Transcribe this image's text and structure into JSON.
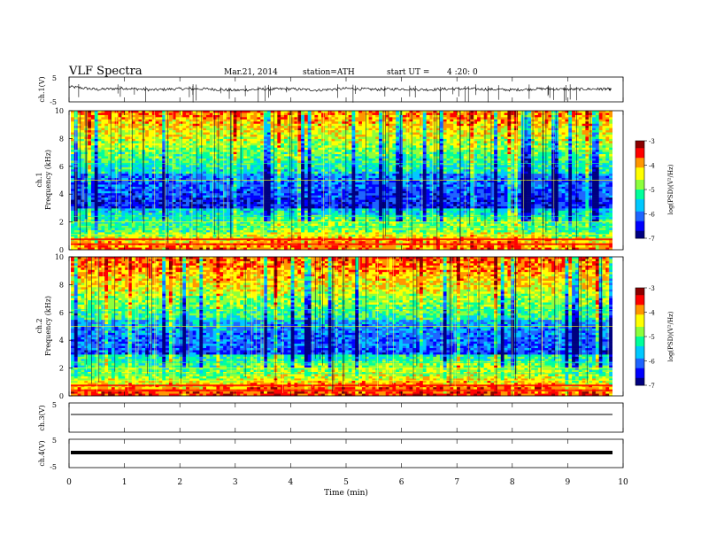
{
  "header": {
    "title": "VLF Spectra",
    "date": "Mar.21, 2014",
    "station": "station=ATH",
    "start_label": "start UT =",
    "start_time": "4 :20: 0"
  },
  "colors": {
    "colormap": [
      "#000080",
      "#0000ff",
      "#1e64ff",
      "#00c8ff",
      "#00ff9b",
      "#8cff3c",
      "#ffff00",
      "#ff9600",
      "#ff0000",
      "#8b0000"
    ],
    "panel_border": "#000000",
    "trace": "#000000"
  },
  "chart_data": [
    {
      "type": "line",
      "id": "ch1_waveform",
      "ylabel": "ch.1(V)",
      "ylim": [
        -5,
        5
      ],
      "yticks": [
        "5",
        "-5"
      ],
      "x": [
        0,
        0.5,
        1,
        1.5,
        2,
        2.5,
        3,
        3.5,
        4,
        4.5,
        5,
        5.5,
        6,
        6.5,
        7,
        7.5,
        8,
        8.5,
        9,
        9.5,
        9.8
      ],
      "y": [
        1.2,
        0.0,
        0.5,
        -0.2,
        0.3,
        0.2,
        -0.4,
        0.1,
        0.2,
        -0.3,
        0.4,
        0.0,
        0.2,
        -0.1,
        0.3,
        0.1,
        -0.2,
        0.3,
        0.0,
        0.2,
        0.1
      ]
    },
    {
      "type": "heatmap",
      "id": "ch1_spectrogram",
      "ylabel_channel": "ch.1",
      "ylabel": "Frequency (kHz)",
      "ylim": [
        0,
        10
      ],
      "yticks": [
        "0",
        "2",
        "4",
        "6",
        "8",
        "10"
      ],
      "xlim": [
        0,
        9.8
      ],
      "colorbar": {
        "label": "log(PSD)(V²/Hz)",
        "ticks": [
          "-3",
          "-4",
          "-5",
          "-6",
          "-7"
        ],
        "range": [
          -7,
          -3
        ]
      }
    },
    {
      "type": "heatmap",
      "id": "ch2_spectrogram",
      "ylabel_channel": "ch.2",
      "ylabel": "Frequency (kHz)",
      "ylim": [
        0,
        10
      ],
      "yticks": [
        "0",
        "2",
        "4",
        "6",
        "8",
        "10"
      ],
      "xlim": [
        0,
        9.8
      ],
      "colorbar": {
        "label": "log(PSD)(V²/Hz)",
        "ticks": [
          "-3",
          "-4",
          "-5",
          "-6",
          "-7"
        ],
        "range": [
          -7,
          -3
        ]
      }
    },
    {
      "type": "line",
      "id": "ch3_waveform",
      "ylabel": "ch.3(V)",
      "ylim": [
        -5,
        5
      ],
      "yticks": [
        "5"
      ],
      "x": [
        0,
        9.8
      ],
      "y": [
        0,
        0
      ]
    },
    {
      "type": "line",
      "id": "ch4_waveform",
      "ylabel": "ch.4(V)",
      "ylim": [
        -5,
        5
      ],
      "yticks": [
        "5",
        "-5"
      ],
      "x": [
        0,
        9.8
      ],
      "y": [
        0,
        0
      ]
    }
  ],
  "x_axis": {
    "label": "Time (min)",
    "ticks": [
      "0",
      "1",
      "2",
      "3",
      "4",
      "5",
      "6",
      "7",
      "8",
      "9",
      "10"
    ],
    "xlim": [
      0,
      10
    ]
  }
}
